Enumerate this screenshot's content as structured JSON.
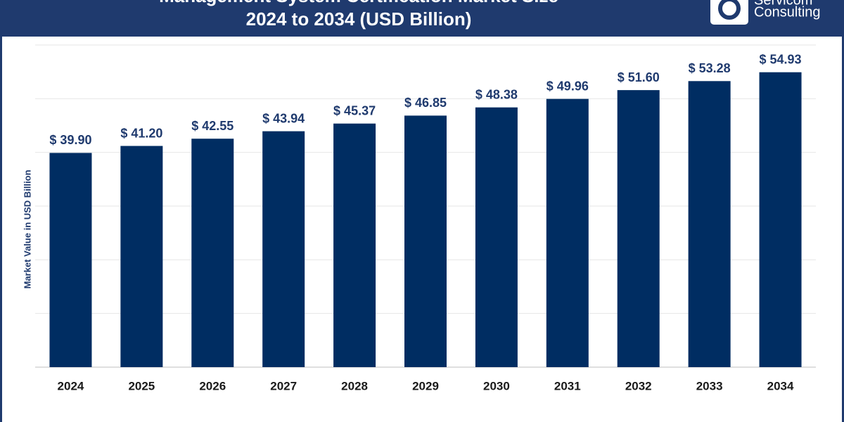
{
  "chart_data": {
    "type": "bar",
    "title": "Management System Certification Market Size",
    "subtitle": "2024 to 2034 (USD Billion)",
    "brand": [
      "Servicom",
      "Consulting"
    ],
    "y_label": "Market Value in USD Billion",
    "categories": [
      "2024",
      "2025",
      "2026",
      "2027",
      "2028",
      "2029",
      "2030",
      "2031",
      "2032",
      "2033",
      "2034"
    ],
    "values": [
      39.9,
      41.2,
      42.55,
      43.94,
      45.37,
      46.85,
      48.38,
      49.96,
      51.6,
      53.28,
      54.93
    ],
    "value_labels": [
      "$ 39.90",
      "$ 41.20",
      "$ 42.55",
      "$ 43.94",
      "$ 45.37",
      "$ 46.85",
      "$ 48.38",
      "$ 49.96",
      "$ 51.60",
      "$ 53.28",
      "$ 54.93"
    ],
    "color": "#002d62",
    "ylim": [
      0,
      60
    ],
    "yticks": [
      0,
      10,
      20,
      30,
      40,
      50,
      60
    ],
    "grid": true
  }
}
